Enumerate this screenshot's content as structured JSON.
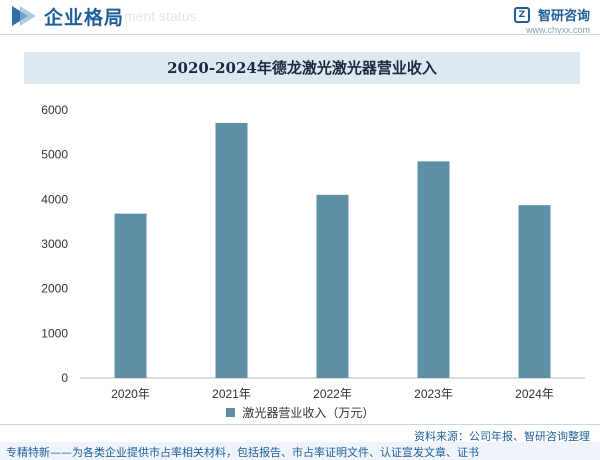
{
  "header": {
    "section_title": "企业格局",
    "section_subtitle": "ment status",
    "brand_name": "智研咨询",
    "brand_url": "www.chyxx.com"
  },
  "chart_data": {
    "type": "bar",
    "title": "2020-2024年德龙激光激光器营业收入",
    "categories": [
      "2020年",
      "2021年",
      "2022年",
      "2023年",
      "2024年"
    ],
    "series": [
      {
        "name": "激光器营业收入（万元）",
        "values": [
          3680,
          5710,
          4100,
          4850,
          3870
        ]
      }
    ],
    "ylim": [
      0,
      6000
    ],
    "yticks": [
      0,
      1000,
      2000,
      3000,
      4000,
      5000,
      6000
    ],
    "legend_position": "bottom",
    "grid": false,
    "bar_color": "#5f8fa6"
  },
  "footer": {
    "source": "资料来源：公司年报、智研咨询整理",
    "note": "专精特新——为各类企业提供市占率相关材料，包括报告、市占率证明文件、认证宣发文章、证书"
  }
}
